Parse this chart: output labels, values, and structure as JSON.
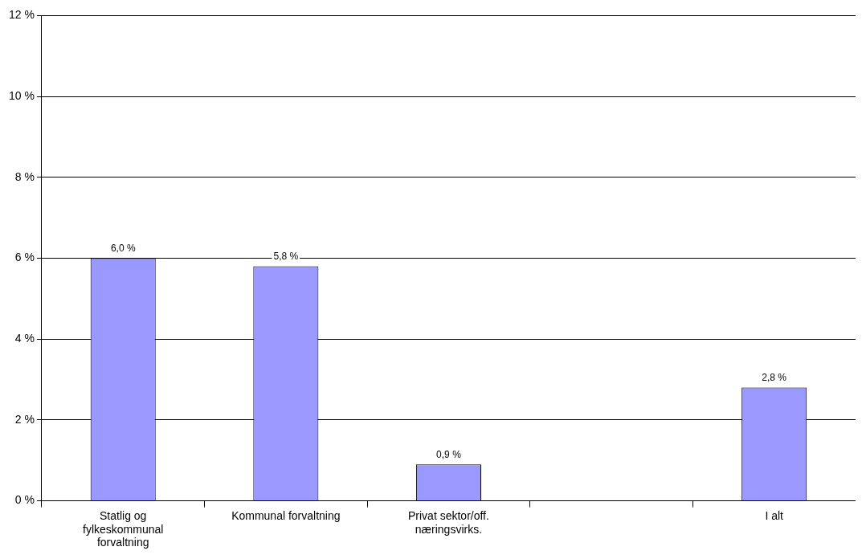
{
  "chart_data": {
    "type": "bar",
    "categories": [
      "Statlig og fylkeskommunal forvaltning",
      "Kommunal forvaltning",
      "Privat sektor/off. næringsvirks.",
      null,
      "I alt"
    ],
    "values": [
      6.0,
      5.8,
      0.9,
      null,
      2.8
    ],
    "value_labels": [
      "6,0 %",
      "5,8 %",
      "0,9 %",
      null,
      "2,8 %"
    ],
    "color": "#9999ff",
    "ylim": [
      0,
      12
    ],
    "yticks": [
      {
        "value": 0,
        "label": "0 %"
      },
      {
        "value": 2,
        "label": "2 %"
      },
      {
        "value": 4,
        "label": "4 %"
      },
      {
        "value": 6,
        "label": "6 %"
      },
      {
        "value": 8,
        "label": "8 %"
      },
      {
        "value": 10,
        "label": "10 %"
      },
      {
        "value": 12,
        "label": "12 %"
      }
    ],
    "grid": "y",
    "legend": false
  }
}
